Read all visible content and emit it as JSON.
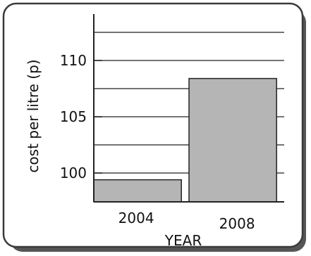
{
  "chart_data": {
    "type": "bar",
    "categories": [
      "2004",
      "2008"
    ],
    "values": [
      99.4,
      108.4
    ],
    "title": "",
    "xlabel": "YEAR",
    "ylabel": "cost per litre (p)",
    "ylim": [
      98,
      113
    ],
    "yticks": [
      "100",
      "105",
      "110"
    ],
    "grid": true,
    "legend": "none"
  },
  "colors": {
    "bar_fill": "#b5b5b5",
    "frame": "#3a3a3a",
    "grid": "#222222"
  }
}
